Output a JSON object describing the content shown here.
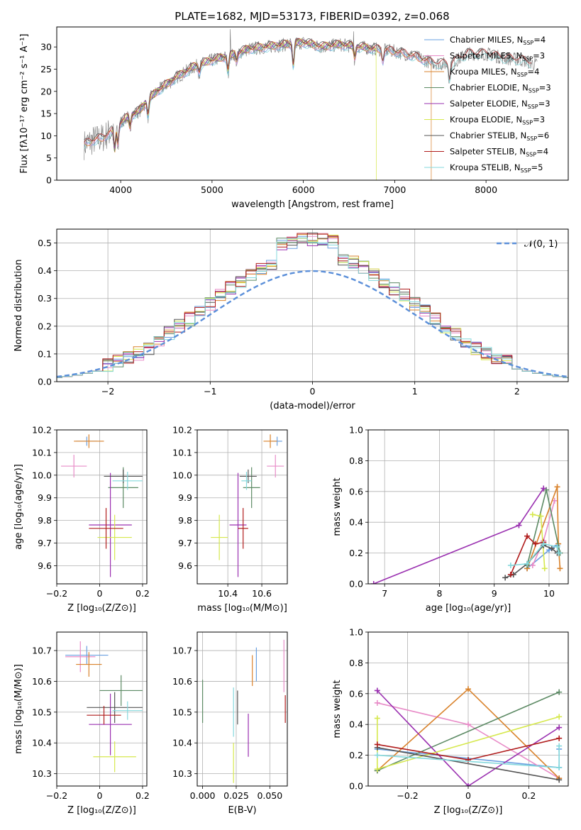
{
  "figure": {
    "title": "PLATE=1682, MJD=53173, FIBERID=0392, z=0.068"
  },
  "colors": {
    "Chabrier MILES": "#6aa0e0",
    "Salpeter MILES": "#e88cc8",
    "Kroupa MILES": "#d9822b",
    "Chabrier ELODIE": "#5c8a64",
    "Salpeter ELODIE": "#9a30b0",
    "Kroupa ELODIE": "#d6e84e",
    "Chabrier STELIB": "#555555",
    "Salpeter STELIB": "#b01c1c",
    "Kroupa STELIB": "#84d8dc",
    "gaussian": "#5b8fd9"
  },
  "models": [
    {
      "name": "Chabrier MILES",
      "nssp": "4",
      "color": "#6aa0e0"
    },
    {
      "name": "Salpeter MILES",
      "nssp": "3",
      "color": "#e88cc8"
    },
    {
      "name": "Kroupa MILES",
      "nssp": "4",
      "color": "#d9822b"
    },
    {
      "name": "Chabrier ELODIE",
      "nssp": "3",
      "color": "#5c8a64"
    },
    {
      "name": "Salpeter ELODIE",
      "nssp": "3",
      "color": "#9a30b0"
    },
    {
      "name": "Kroupa ELODIE",
      "nssp": "3",
      "color": "#d6e84e"
    },
    {
      "name": "Chabrier STELIB",
      "nssp": "6",
      "color": "#555555"
    },
    {
      "name": "Salpeter STELIB",
      "nssp": "4",
      "color": "#b01c1c"
    },
    {
      "name": "Kroupa STELIB",
      "nssp": "5",
      "color": "#84d8dc"
    }
  ],
  "legend2": {
    "label": "𝒩(0, 1)"
  },
  "chart_data": [
    {
      "type": "line",
      "id": "spectrum",
      "title": "PLATE=1682, MJD=53173, FIBERID=0392, z=0.068",
      "xlabel": "wavelength [Angstrom, rest frame]",
      "ylabel": "Flux [fλ10⁻¹⁷ erg cm⁻² s⁻¹ A⁻¹]",
      "xlim": [
        3300,
        8900
      ],
      "ylim": [
        0,
        34.5
      ],
      "xticks": [
        4000,
        5000,
        6000,
        7000,
        8000
      ],
      "yticks": [
        0,
        5,
        10,
        15,
        20,
        25,
        30
      ],
      "legend": "top-right",
      "grid": false,
      "spectrum_envelope": {
        "wavelength": [
          3600,
          3700,
          3800,
          3900,
          4000,
          4100,
          4200,
          4300,
          4400,
          4600,
          4800,
          5000,
          5200,
          5400,
          5600,
          5800,
          6000,
          6200,
          6400,
          6600,
          6800,
          7000,
          7200,
          7400,
          7600,
          7800,
          8000,
          8200,
          8400,
          8550
        ],
        "flux": [
          8,
          9,
          9.5,
          11,
          13,
          14.5,
          15.5,
          18,
          20,
          23,
          25.5,
          27,
          28,
          29.5,
          30,
          30.5,
          31,
          30,
          30.5,
          30,
          29.5,
          29,
          28,
          26.5,
          26,
          28.5,
          28.5,
          27.5,
          27,
          26
        ]
      }
    },
    {
      "type": "step",
      "id": "residuals",
      "xlabel": "(data-model)/error",
      "ylabel": "Normed distribution",
      "xlim": [
        -2.5,
        2.5
      ],
      "ylim": [
        0,
        0.55
      ],
      "xticks": [
        -2,
        -1,
        0,
        1,
        2
      ],
      "yticks": [
        0.0,
        0.1,
        0.2,
        0.3,
        0.4,
        0.5
      ],
      "legend": "top-right",
      "grid": true,
      "gaussian": {
        "name": "𝒩(0, 1)",
        "mu": 0,
        "sigma": 1
      }
    },
    {
      "type": "errorbar",
      "id": "age_vs_Z",
      "xlabel": "Z [log₁₀(Z/Z⊙)]",
      "ylabel": "age  [log₁₀(age/yr)]",
      "xlim": [
        -0.2,
        0.22
      ],
      "ylim": [
        9.52,
        10.2
      ],
      "xticks": [
        -0.2,
        0.0,
        0.2
      ],
      "yticks": [
        9.6,
        9.7,
        9.8,
        9.9,
        10.0,
        10.1,
        10.2
      ],
      "grid": true,
      "points": [
        {
          "model": "Chabrier MILES",
          "x": -0.06,
          "xerr": 0.05,
          "y": 10.15,
          "yerr": 0.02
        },
        {
          "model": "Salpeter MILES",
          "x": -0.12,
          "xerr": 0.06,
          "y": 10.04,
          "yerr": 0.05
        },
        {
          "model": "Kroupa MILES",
          "x": -0.05,
          "xerr": 0.07,
          "y": 10.15,
          "yerr": 0.03
        },
        {
          "model": "Chabrier ELODIE",
          "x": 0.11,
          "xerr": 0.07,
          "y": 9.945,
          "yerr": 0.09
        },
        {
          "model": "Salpeter ELODIE",
          "x": 0.05,
          "xerr": 0.1,
          "y": 9.78,
          "yerr": 0.23
        },
        {
          "model": "Kroupa ELODIE",
          "x": 0.07,
          "xerr": 0.08,
          "y": 9.725,
          "yerr": 0.1
        },
        {
          "model": "Chabrier STELIB",
          "x": 0.11,
          "xerr": 0.09,
          "y": 9.995,
          "yerr": 0.03
        },
        {
          "model": "Salpeter STELIB",
          "x": 0.03,
          "xerr": 0.08,
          "y": 9.765,
          "yerr": 0.09
        },
        {
          "model": "Kroupa STELIB",
          "x": 0.13,
          "xerr": 0.07,
          "y": 9.975,
          "yerr": 0.04
        }
      ]
    },
    {
      "type": "errorbar",
      "id": "age_vs_mass",
      "xlabel": "mass [log₁₀(M/M⊙)]",
      "ylabel": "",
      "xlim": [
        10.22,
        10.75
      ],
      "ylim": [
        9.52,
        10.2
      ],
      "xticks": [
        10.4,
        10.6
      ],
      "yticks": [
        9.6,
        9.7,
        9.8,
        9.9,
        10.0,
        10.1,
        10.2
      ],
      "grid": true,
      "points": [
        {
          "model": "Chabrier MILES",
          "x": 10.69,
          "xerr": 0.03,
          "y": 10.15,
          "yerr": 0.02
        },
        {
          "model": "Salpeter MILES",
          "x": 10.68,
          "xerr": 0.05,
          "y": 10.04,
          "yerr": 0.05
        },
        {
          "model": "Kroupa MILES",
          "x": 10.65,
          "xerr": 0.04,
          "y": 10.15,
          "yerr": 0.03
        },
        {
          "model": "Chabrier ELODIE",
          "x": 10.54,
          "xerr": 0.05,
          "y": 9.945,
          "yerr": 0.09
        },
        {
          "model": "Salpeter ELODIE",
          "x": 10.46,
          "xerr": 0.05,
          "y": 9.78,
          "yerr": 0.23
        },
        {
          "model": "Kroupa ELODIE",
          "x": 10.35,
          "xerr": 0.05,
          "y": 9.725,
          "yerr": 0.1
        },
        {
          "model": "Chabrier STELIB",
          "x": 10.52,
          "xerr": 0.05,
          "y": 9.995,
          "yerr": 0.03
        },
        {
          "model": "Salpeter STELIB",
          "x": 10.49,
          "xerr": 0.03,
          "y": 9.765,
          "yerr": 0.09
        },
        {
          "model": "Kroupa STELIB",
          "x": 10.51,
          "xerr": 0.03,
          "y": 9.975,
          "yerr": 0.04
        }
      ]
    },
    {
      "type": "line",
      "id": "massweight_vs_age",
      "xlabel": "age  [log₁₀(age/yr)]",
      "ylabel": "mass weight",
      "xlim": [
        6.7,
        10.35
      ],
      "ylim": [
        0,
        1.0
      ],
      "xticks": [
        7,
        8,
        9,
        10
      ],
      "yticks": [
        0.0,
        0.2,
        0.4,
        0.6,
        0.8,
        1.0
      ],
      "grid": true,
      "series": [
        {
          "model": "Chabrier MILES",
          "x": [
            9.6,
            10.0,
            10.15,
            10.18
          ],
          "y": [
            0.1,
            0.22,
            0.25,
            0.2
          ]
        },
        {
          "model": "Salpeter MILES",
          "x": [
            9.7,
            9.9,
            10.1
          ],
          "y": [
            0.12,
            0.28,
            0.54
          ]
        },
        {
          "model": "Kroupa MILES",
          "x": [
            9.6,
            10.15,
            10.17,
            10.2
          ],
          "y": [
            0.1,
            0.63,
            0.26,
            0.1
          ]
        },
        {
          "model": "Chabrier ELODIE",
          "x": [
            9.6,
            9.95,
            10.2
          ],
          "y": [
            0.12,
            0.61,
            0.2
          ]
        },
        {
          "model": "Salpeter ELODIE",
          "x": [
            6.8,
            9.45,
            9.9
          ],
          "y": [
            0.0,
            0.38,
            0.62
          ]
        },
        {
          "model": "Kroupa ELODIE",
          "x": [
            9.7,
            9.85,
            9.92
          ],
          "y": [
            0.45,
            0.44,
            0.1
          ]
        },
        {
          "model": "Chabrier STELIB",
          "x": [
            9.2,
            9.35,
            9.6,
            9.9,
            10.05,
            10.15
          ],
          "y": [
            0.04,
            0.06,
            0.13,
            0.25,
            0.23,
            0.2
          ]
        },
        {
          "model": "Salpeter STELIB",
          "x": [
            9.3,
            9.6,
            9.75,
            9.9
          ],
          "y": [
            0.06,
            0.31,
            0.26,
            0.27
          ]
        },
        {
          "model": "Kroupa STELIB",
          "x": [
            9.3,
            9.6,
            9.9,
            10.15,
            10.18
          ],
          "y": [
            0.12,
            0.13,
            0.26,
            0.24,
            0.2
          ]
        }
      ]
    },
    {
      "type": "errorbar",
      "id": "mass_vs_Z",
      "xlabel": "Z [log₁₀(Z/Z⊙)]",
      "ylabel": "mass [log₁₀(M/M⊙)]",
      "xlim": [
        -0.2,
        0.22
      ],
      "ylim": [
        10.26,
        10.76
      ],
      "xticks": [
        -0.2,
        0.0,
        0.2
      ],
      "yticks": [
        10.3,
        10.4,
        10.5,
        10.6,
        10.7
      ],
      "grid": true,
      "points": [
        {
          "model": "Chabrier MILES",
          "x": -0.06,
          "xerr": 0.1,
          "y": 10.685,
          "yerr": 0.03
        },
        {
          "model": "Salpeter MILES",
          "x": -0.09,
          "xerr": 0.07,
          "y": 10.68,
          "yerr": 0.05
        },
        {
          "model": "Kroupa MILES",
          "x": -0.05,
          "xerr": 0.06,
          "y": 10.655,
          "yerr": 0.04
        },
        {
          "model": "Chabrier ELODIE",
          "x": 0.1,
          "xerr": 0.1,
          "y": 10.57,
          "yerr": 0.05
        },
        {
          "model": "Salpeter ELODIE",
          "x": 0.05,
          "xerr": 0.1,
          "y": 10.46,
          "yerr": 0.1
        },
        {
          "model": "Kroupa ELODIE",
          "x": 0.07,
          "xerr": 0.1,
          "y": 10.355,
          "yerr": 0.05
        },
        {
          "model": "Chabrier STELIB",
          "x": 0.07,
          "xerr": 0.13,
          "y": 10.515,
          "yerr": 0.05
        },
        {
          "model": "Salpeter STELIB",
          "x": 0.02,
          "xerr": 0.08,
          "y": 10.49,
          "yerr": 0.03
        },
        {
          "model": "Kroupa STELIB",
          "x": 0.13,
          "xerr": 0.07,
          "y": 10.505,
          "yerr": 0.03
        }
      ]
    },
    {
      "type": "errorbar",
      "id": "mass_vs_ebv",
      "xlabel": "E(B-V)",
      "ylabel": "",
      "xlim": [
        -0.004,
        0.063
      ],
      "ylim": [
        10.26,
        10.76
      ],
      "xticks": [
        0.0,
        0.025,
        0.05
      ],
      "xticklabels": [
        "0.000",
        "0.025",
        "0.050"
      ],
      "yticks": [
        10.3,
        10.4,
        10.5,
        10.6,
        10.7
      ],
      "grid": true,
      "points": [
        {
          "model": "Chabrier MILES",
          "x": 0.04,
          "y": 10.655,
          "yerr": 0.055
        },
        {
          "model": "Salpeter MILES",
          "x": 0.0605,
          "y": 10.65,
          "yerr": 0.085
        },
        {
          "model": "Kroupa MILES",
          "x": 0.037,
          "y": 10.635,
          "yerr": 0.05
        },
        {
          "model": "Chabrier ELODIE",
          "x": 0.0,
          "y": 10.535,
          "yerr": 0.07
        },
        {
          "model": "Salpeter ELODIE",
          "x": 0.034,
          "y": 10.425,
          "yerr": 0.07
        },
        {
          "model": "Kroupa ELODIE",
          "x": 0.023,
          "y": 10.335,
          "yerr": 0.065
        },
        {
          "model": "Chabrier STELIB",
          "x": 0.026,
          "y": 10.515,
          "yerr": 0.055
        },
        {
          "model": "Salpeter STELIB",
          "x": 0.0615,
          "y": 10.51,
          "yerr": 0.045
        },
        {
          "model": "Kroupa STELIB",
          "x": 0.023,
          "y": 10.5,
          "yerr": 0.08
        }
      ]
    },
    {
      "type": "line",
      "id": "massweight_vs_Z",
      "xlabel": "Z [log₁₀(Z/Z⊙)]",
      "ylabel": "mass weight",
      "xlim": [
        -0.33,
        0.33
      ],
      "ylim": [
        0,
        1.0
      ],
      "xticks": [
        -0.2,
        0.0,
        0.2
      ],
      "yticks": [
        0.0,
        0.2,
        0.4,
        0.6,
        0.8,
        1.0
      ],
      "grid": true,
      "series": [
        {
          "model": "Chabrier MILES",
          "x": [
            -0.3,
            0.3,
            0.3
          ],
          "y": [
            0.24,
            0.12,
            0.24
          ]
        },
        {
          "model": "Salpeter MILES",
          "x": [
            -0.3,
            0.0,
            0.3
          ],
          "y": [
            0.54,
            0.4,
            0.05
          ]
        },
        {
          "model": "Kroupa MILES",
          "x": [
            -0.3,
            0.0,
            0.3
          ],
          "y": [
            0.1,
            0.63,
            0.05
          ]
        },
        {
          "model": "Chabrier ELODIE",
          "x": [
            -0.3,
            0.3
          ],
          "y": [
            0.1,
            0.61
          ]
        },
        {
          "model": "Salpeter ELODIE",
          "x": [
            -0.3,
            0.0,
            0.3
          ],
          "y": [
            0.62,
            0.0,
            0.38
          ]
        },
        {
          "model": "Kroupa ELODIE",
          "x": [
            -0.3,
            -0.3,
            0.3
          ],
          "y": [
            0.44,
            0.11,
            0.45
          ]
        },
        {
          "model": "Chabrier STELIB",
          "x": [
            -0.3,
            0.3
          ],
          "y": [
            0.25,
            0.04
          ]
        },
        {
          "model": "Salpeter STELIB",
          "x": [
            -0.3,
            0.0,
            0.3
          ],
          "y": [
            0.27,
            0.17,
            0.31
          ]
        },
        {
          "model": "Kroupa STELIB",
          "x": [
            -0.3,
            0.3,
            0.3
          ],
          "y": [
            0.2,
            0.12,
            0.26
          ]
        }
      ]
    }
  ]
}
